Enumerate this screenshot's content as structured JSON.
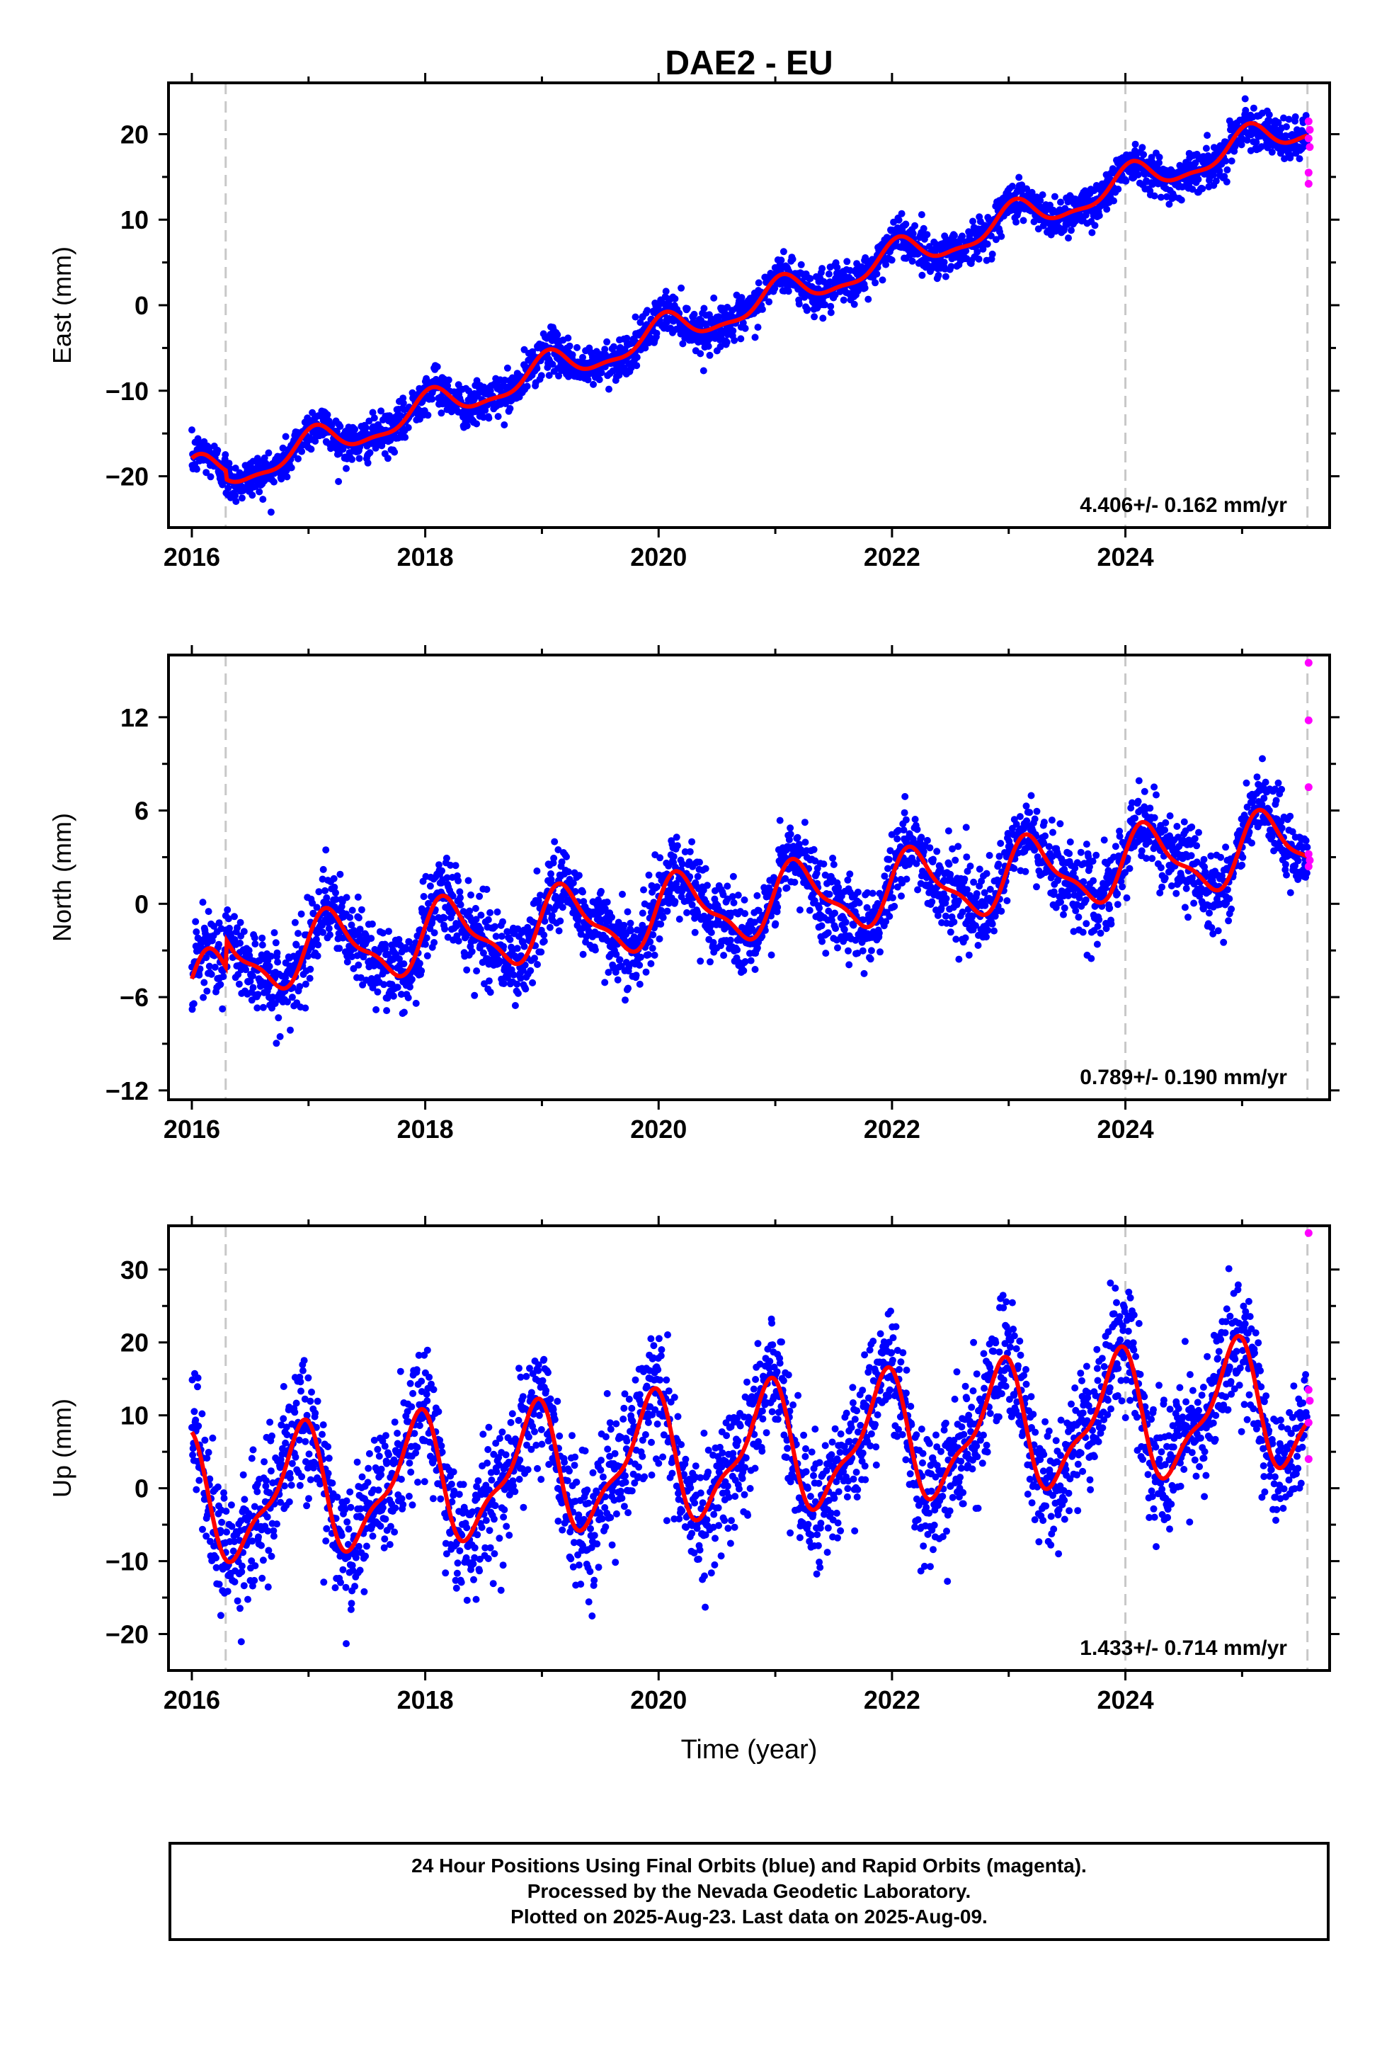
{
  "chart_data": [
    {
      "type": "scatter",
      "title": "DAE2 - EU",
      "ylabel": "East (mm)",
      "xlabel": "",
      "xlim": [
        2015.8,
        2025.75
      ],
      "ylim": [
        -26,
        26
      ],
      "xticks": [
        2016,
        2018,
        2020,
        2022,
        2024
      ],
      "yticks": [
        -20,
        -10,
        0,
        10,
        20
      ],
      "vlines": [
        2016.29,
        2024.0,
        2025.56
      ],
      "rate": "4.406+/- 0.162 mm/yr",
      "model": {
        "base": -20.1,
        "trend": 4.406,
        "amp": 1.8,
        "phase": 1.25,
        "offset_at": 2016.29,
        "offset": -1.0
      },
      "scatter_sd": 1.2,
      "rapid_points": [
        [
          2025.57,
          21.5
        ],
        [
          2025.58,
          20.5
        ],
        [
          2025.57,
          19.5
        ],
        [
          2025.58,
          18.5
        ],
        [
          2025.57,
          15.5
        ],
        [
          2025.57,
          14.2
        ]
      ],
      "series": [
        {
          "name": "Final Orbits",
          "color": "#0000ff"
        },
        {
          "name": "Rapid Orbits",
          "color": "#ff00ff"
        },
        {
          "name": "Model",
          "color": "#ff0000"
        }
      ]
    },
    {
      "type": "scatter",
      "title": "",
      "ylabel": "North (mm)",
      "xlabel": "",
      "xlim": [
        2015.8,
        2025.75
      ],
      "ylim": [
        -12.6,
        16
      ],
      "xticks": [
        2016,
        2018,
        2020,
        2022,
        2024
      ],
      "yticks": [
        -12,
        -6,
        0,
        6,
        12
      ],
      "vlines": [
        2016.29,
        2024.0,
        2025.56
      ],
      "rate": "0.789+/- 0.190 mm/yr",
      "model": {
        "base": -5.6,
        "trend": 0.789,
        "amp": 2.1,
        "phase": 0.3,
        "offset_at": 2016.29,
        "offset": 1.8
      },
      "scatter_sd": 1.3,
      "rapid_points": [
        [
          2025.57,
          15.5
        ],
        [
          2025.57,
          11.8
        ],
        [
          2025.57,
          7.5
        ],
        [
          2025.57,
          3.2
        ],
        [
          2025.58,
          2.8
        ],
        [
          2025.57,
          2.4
        ]
      ],
      "series": [
        {
          "name": "Final Orbits",
          "color": "#0000ff"
        },
        {
          "name": "Rapid Orbits",
          "color": "#ff00ff"
        },
        {
          "name": "Model",
          "color": "#ff0000"
        }
      ]
    },
    {
      "type": "scatter",
      "title": "",
      "ylabel": "Up (mm)",
      "xlabel": "Time (year)",
      "xlim": [
        2015.8,
        2025.75
      ],
      "ylim": [
        -25,
        36
      ],
      "xticks": [
        2016,
        2018,
        2020,
        2022,
        2024
      ],
      "yticks": [
        -20,
        -10,
        0,
        10,
        20,
        30
      ],
      "vlines": [
        2016.29,
        2024.0,
        2025.56
      ],
      "rate": "1.433+/- 0.714 mm/yr",
      "model": {
        "base": -2.0,
        "trend": 1.433,
        "amp": 8.0,
        "phase": 2.1,
        "offset_at": 2016.29,
        "offset": 0.0
      },
      "scatter_sd": 4.2,
      "rapid_points": [
        [
          2025.57,
          35.0
        ],
        [
          2025.57,
          13.5
        ],
        [
          2025.58,
          12.0
        ],
        [
          2025.57,
          9.0
        ],
        [
          2025.57,
          4.0
        ]
      ],
      "series": [
        {
          "name": "Final Orbits",
          "color": "#0000ff"
        },
        {
          "name": "Rapid Orbits",
          "color": "#ff00ff"
        },
        {
          "name": "Model",
          "color": "#ff0000"
        }
      ]
    }
  ],
  "footer": {
    "line1": "24 Hour Positions Using Final Orbits (blue) and Rapid Orbits (magenta).",
    "line2": "Processed by the Nevada Geodetic Laboratory.",
    "line3": "Plotted on 2025-Aug-23. Last data on 2025-Aug-09."
  }
}
